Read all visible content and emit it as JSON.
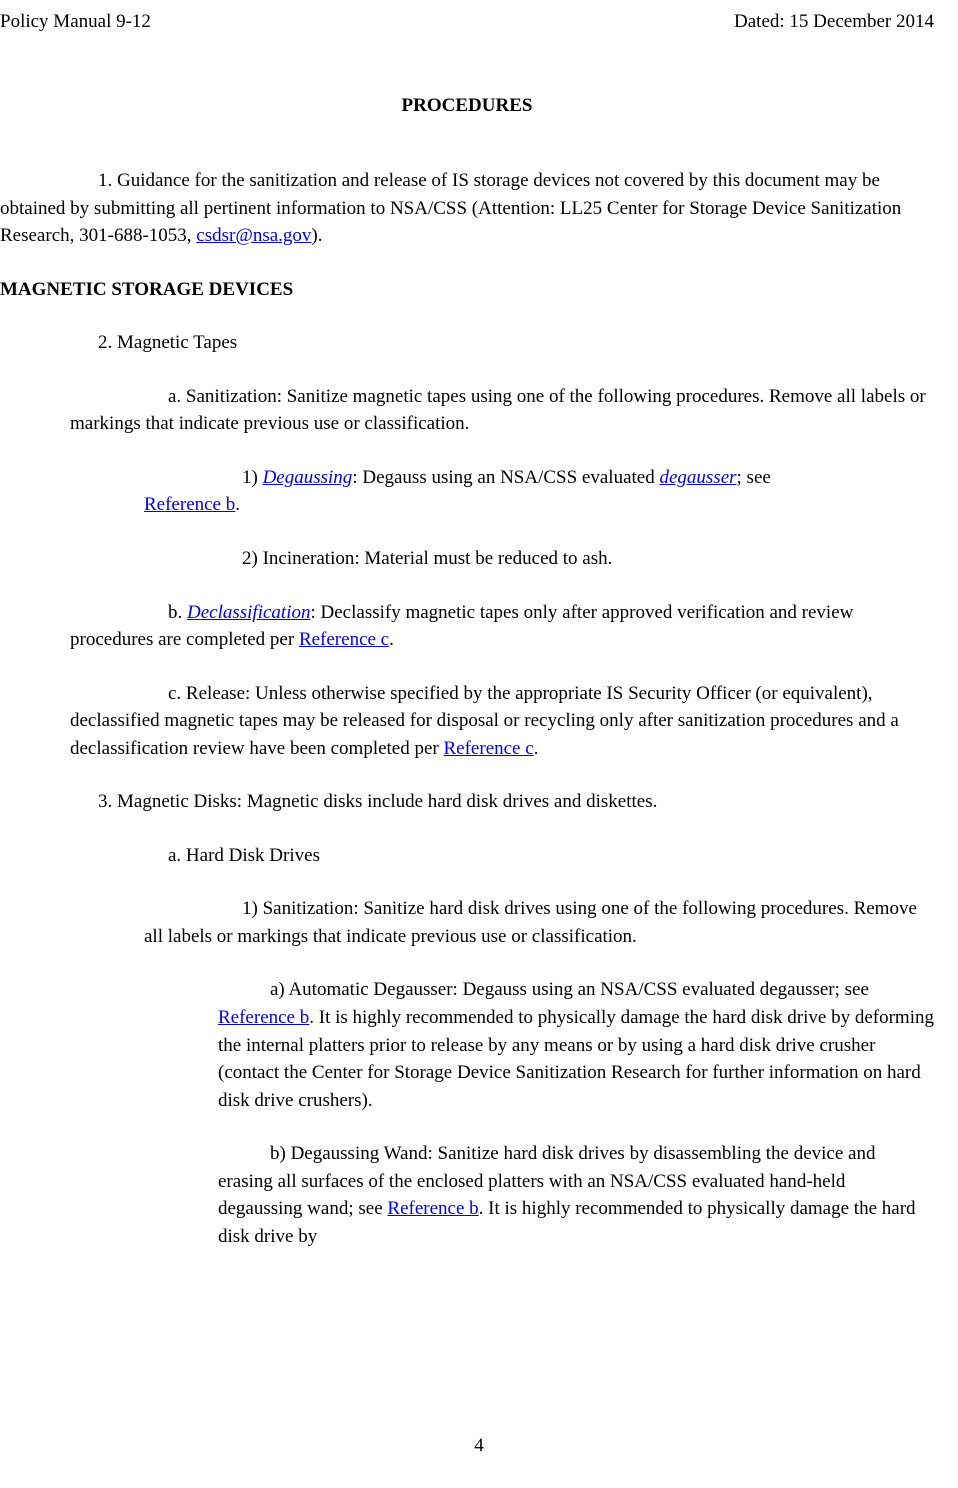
{
  "header": {
    "left": "Policy Manual 9-12",
    "right": "Dated:  15 December 2014"
  },
  "title": "PROCEDURES",
  "p1": {
    "t1": "1.  Guidance for the sanitization and release of IS storage devices not covered by",
    "t2": "this document may be obtained by submitting all pertinent information to NSA/CSS (Attention: LL25 Center for Storage Device Sanitization Research, 301-688-1053, ",
    "email": "csdsr@nsa.gov",
    "t3": ")."
  },
  "h1": "MAGNETIC STORAGE DEVICES",
  "p2": "2.  Magnetic Tapes",
  "p2a": {
    "t1": "a. Sanitization:  Sanitize magnetic tapes using one of the following procedures.",
    "t2": "Remove all labels or markings that indicate previous use or classification."
  },
  "p2a1": {
    "t1": "1) ",
    "link1": "Degaussing",
    "t2": ":  Degauss using an NSA/CSS evaluated ",
    "link2": "degausser",
    "t3": "; see",
    "ref": "Reference b",
    "t4": "."
  },
  "p2a2": "2) Incineration:  Material must be reduced to ash.",
  "p2b": {
    "t1": "b. ",
    "link": "Declassification",
    "t2": ":  Declassify magnetic tapes only after approved",
    "t3": "verification and review procedures are completed per ",
    "ref": "Reference c",
    "t4": "."
  },
  "p2c": {
    "t1": "c. Release:  Unless otherwise specified by the appropriate IS Security Officer (or",
    "t2": "equivalent), declassified magnetic tapes may be released for disposal or recycling only after sanitization procedures and a declassification review have been completed per ",
    "ref": "Reference c",
    "t3": "."
  },
  "p3": "3.  Magnetic Disks:  Magnetic disks include hard disk drives and diskettes.",
  "p3a": "a. Hard Disk Drives",
  "p3a1": {
    "t1": "1) Sanitization:  Sanitize hard disk drives using one of the following",
    "t2": "procedures.  Remove all labels or markings that indicate previous use or classification."
  },
  "p3a1a": {
    "t1": "a) Automatic Degausser:  Degauss using an NSA/CSS evaluated",
    "t2": "degausser; see ",
    "ref": "Reference b",
    "t3": ".  It is highly recommended to physically damage the hard disk drive by deforming the internal platters prior to release by any means or by using a hard disk drive crusher (contact the Center for Storage Device Sanitization Research for further information on hard disk drive crushers)."
  },
  "p3a1b": {
    "t1": "b) Degaussing Wand:  Sanitize hard disk drives by disassembling",
    "t2": "the device and erasing all surfaces of the enclosed platters with an NSA/CSS evaluated hand-held degaussing wand; see ",
    "ref": "Reference b",
    "t3": ".  It is highly recommended to physically damage the hard disk drive by"
  },
  "page_num": "4"
}
